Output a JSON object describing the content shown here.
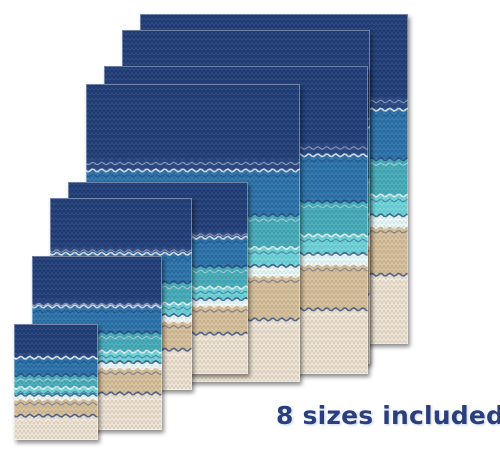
{
  "caption": "8 sizes included",
  "colors": {
    "navy": "#2c4a86",
    "navy_dark": "#24407a",
    "ocean_blue": "#2e75ad",
    "teal": "#48aebc",
    "aqua": "#6fd6dc",
    "foam": "#e8fbfc",
    "sand": "#d8c19d",
    "cream": "#efe4d3",
    "caption_text": "#2a3f7e"
  },
  "swatches": [
    {
      "name": "size-1"
    },
    {
      "name": "size-2"
    },
    {
      "name": "size-3"
    },
    {
      "name": "size-4"
    },
    {
      "name": "size-5"
    },
    {
      "name": "size-6"
    },
    {
      "name": "size-7"
    },
    {
      "name": "size-8"
    }
  ]
}
